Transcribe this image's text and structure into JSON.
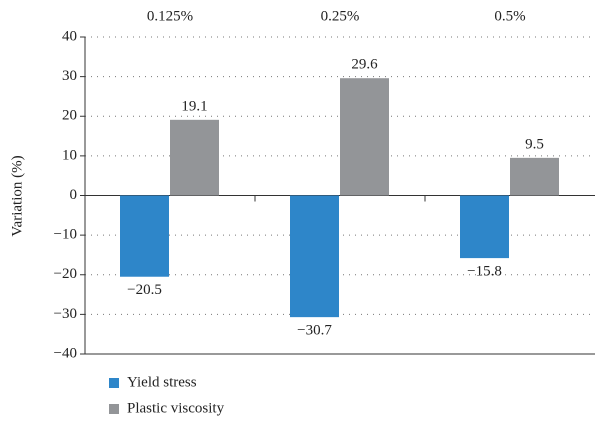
{
  "chart_data": {
    "type": "bar",
    "categories": [
      "0.125%",
      "0.25%",
      "0.5%"
    ],
    "y_label": "Variation (%)",
    "ylim": [
      -40,
      40
    ],
    "yticks": [
      {
        "value": -40,
        "label": "−40"
      },
      {
        "value": -30,
        "label": "−30"
      },
      {
        "value": -20,
        "label": "−20"
      },
      {
        "value": -10,
        "label": "−10"
      },
      0,
      10,
      20,
      30,
      40
    ],
    "grid": true,
    "series": [
      {
        "name": "Yield stress",
        "color": "#2e86c9",
        "values": [
          -20.5,
          -30.7,
          -15.8
        ],
        "value_labels": [
          "−20.5",
          "−30.7",
          "−15.8"
        ]
      },
      {
        "name": "Plastic viscosity",
        "color": "#939598",
        "values": [
          19.1,
          29.6,
          9.5
        ]
      }
    ]
  }
}
